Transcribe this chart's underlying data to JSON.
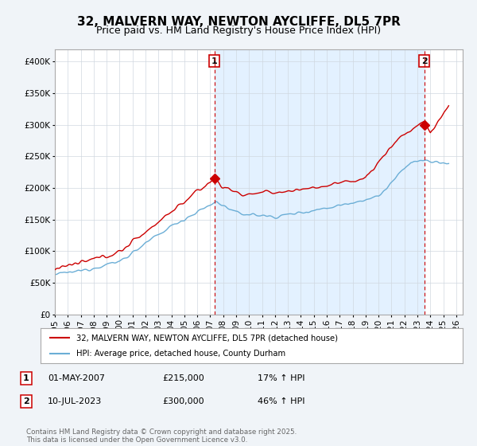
{
  "title": "32, MALVERN WAY, NEWTON AYCLIFFE, DL5 7PR",
  "subtitle": "Price paid vs. HM Land Registry's House Price Index (HPI)",
  "ylim": [
    0,
    420000
  ],
  "yticks": [
    0,
    50000,
    100000,
    150000,
    200000,
    250000,
    300000,
    350000,
    400000
  ],
  "xlim_start": 1995.0,
  "xlim_end": 2026.5,
  "hpi_color": "#6baed6",
  "price_color": "#cc0000",
  "marker1_x": 2007.33,
  "marker1_y": 215000,
  "marker1_label": "1",
  "marker2_x": 2023.53,
  "marker2_y": 300000,
  "marker2_label": "2",
  "vline1_x": 2007.33,
  "vline2_x": 2023.53,
  "shade_color": "#ddeeff",
  "hatch_color": "#cccccc",
  "legend_label_price": "32, MALVERN WAY, NEWTON AYCLIFFE, DL5 7PR (detached house)",
  "legend_label_hpi": "HPI: Average price, detached house, County Durham",
  "annotation1_date": "01-MAY-2007",
  "annotation1_price": "£215,000",
  "annotation1_hpi": "17% ↑ HPI",
  "annotation2_date": "10-JUL-2023",
  "annotation2_price": "£300,000",
  "annotation2_hpi": "46% ↑ HPI",
  "footer": "Contains HM Land Registry data © Crown copyright and database right 2025.\nThis data is licensed under the Open Government Licence v3.0.",
  "background_color": "#f0f4f8",
  "plot_background": "#ffffff",
  "grid_color": "#d0d8e0",
  "title_fontsize": 11,
  "subtitle_fontsize": 9,
  "tick_fontsize": 7.5,
  "data_end_x": 2025.5
}
